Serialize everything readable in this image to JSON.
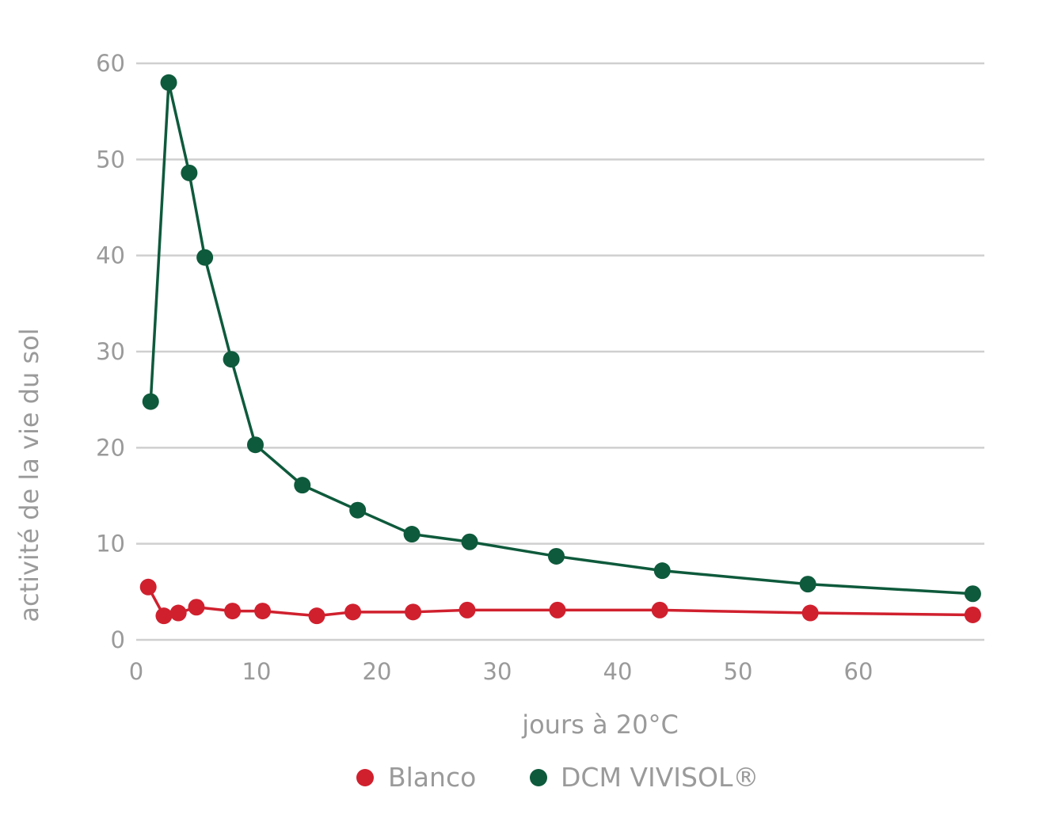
{
  "chart_data": {
    "type": "line",
    "xlabel": "jours à 20°C",
    "ylabel": "activité de la vie du sol",
    "xlim": [
      0,
      70
    ],
    "ylim": [
      0,
      60
    ],
    "x_ticks": [
      "0",
      "10",
      "20",
      "30",
      "40",
      "50",
      "60"
    ],
    "y_ticks": [
      "0",
      "10",
      "20",
      "30",
      "40",
      "50",
      "60"
    ],
    "grid": "horizontal",
    "legend_position": "bottom",
    "series": [
      {
        "name": "Blanco",
        "color": "#d0202e",
        "points": [
          [
            1,
            5.5
          ],
          [
            2.3,
            2.5
          ],
          [
            3.5,
            2.8
          ],
          [
            5,
            3.4
          ],
          [
            8,
            3.0
          ],
          [
            10.5,
            3.0
          ],
          [
            15,
            2.5
          ],
          [
            18,
            2.9
          ],
          [
            23,
            2.9
          ],
          [
            27.5,
            3.1
          ],
          [
            35,
            3.1
          ],
          [
            43.5,
            3.1
          ],
          [
            56,
            2.8
          ],
          [
            69.5,
            2.6
          ]
        ]
      },
      {
        "name": "DCM VIVISOL®",
        "color": "#0e5a3c",
        "points": [
          [
            1.2,
            24.8
          ],
          [
            2.7,
            58.0
          ],
          [
            4.4,
            48.6
          ],
          [
            5.7,
            39.8
          ],
          [
            7.9,
            29.2
          ],
          [
            9.9,
            20.3
          ],
          [
            13.8,
            16.1
          ],
          [
            18.4,
            13.5
          ],
          [
            22.9,
            11.0
          ],
          [
            27.7,
            10.2
          ],
          [
            34.9,
            8.7
          ],
          [
            43.7,
            7.2
          ],
          [
            55.8,
            5.8
          ],
          [
            69.5,
            4.8
          ]
        ]
      }
    ]
  }
}
